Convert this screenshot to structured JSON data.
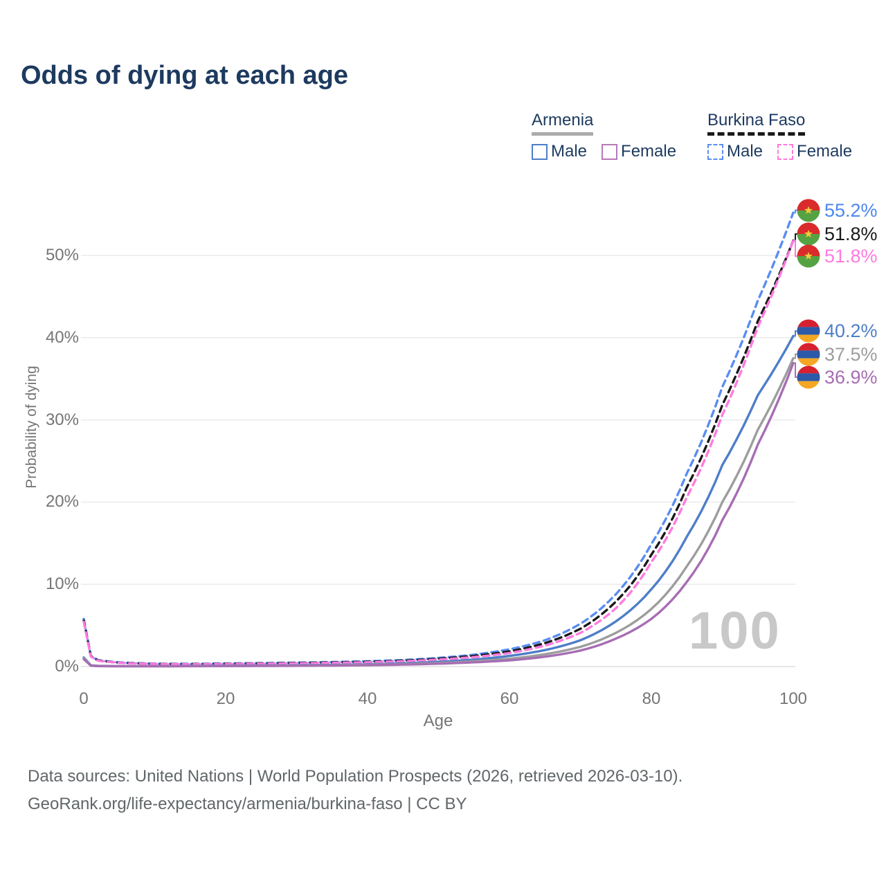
{
  "header": {
    "title": "Odds of dying at each age"
  },
  "legend": {
    "groups": [
      {
        "label": "Armenia",
        "underline_style": "solid",
        "underline_color": "#ababab",
        "items": [
          {
            "label": "Male",
            "swatch_color": "#4e7ec8",
            "swatch_style": "solid"
          },
          {
            "label": "Female",
            "swatch_color": "#b779b9",
            "swatch_style": "solid"
          }
        ]
      },
      {
        "label": "Burkina Faso",
        "underline_style": "dashed",
        "underline_color": "#1a1a1a",
        "items": [
          {
            "label": "Male",
            "swatch_color": "#5a8df0",
            "swatch_style": "dashed"
          },
          {
            "label": "Female",
            "swatch_color": "#ff7ade",
            "swatch_style": "dashed"
          }
        ]
      }
    ]
  },
  "chart_data": {
    "type": "line",
    "title": "Odds of dying at each age",
    "xlabel": "Age",
    "ylabel": "Probability of dying",
    "xlim": [
      0,
      100
    ],
    "ylim": [
      0,
      57
    ],
    "grid": "horizontal",
    "watermark": "100",
    "xticks": [
      0,
      20,
      40,
      60,
      80,
      100
    ],
    "yticks": [
      {
        "value": 0,
        "label": "0%"
      },
      {
        "value": 10,
        "label": "10%"
      },
      {
        "value": 20,
        "label": "20%"
      },
      {
        "value": 30,
        "label": "30%"
      },
      {
        "value": 40,
        "label": "40%"
      },
      {
        "value": 50,
        "label": "50%"
      }
    ],
    "x": [
      0,
      1,
      2,
      5,
      10,
      15,
      20,
      25,
      30,
      35,
      40,
      45,
      50,
      55,
      60,
      65,
      70,
      75,
      80,
      85,
      90,
      95,
      100
    ],
    "series": [
      {
        "name": "Burkina Faso Male",
        "country": "Burkina Faso",
        "sex": "Male",
        "color": "#5a8df0",
        "dash": "dashed",
        "flag": "burkina-faso",
        "end_label": "55.2%",
        "end_value": 55.2,
        "label_color": "#4c86f0",
        "label_y_pct": 55.5,
        "values": [
          5.8,
          1.3,
          0.8,
          0.5,
          0.35,
          0.33,
          0.38,
          0.42,
          0.48,
          0.55,
          0.65,
          0.8,
          1.05,
          1.45,
          2.1,
          3.2,
          5.2,
          8.8,
          14.9,
          23.5,
          34.0,
          44.5,
          55.2
        ]
      },
      {
        "name": "Burkina Faso Both sexes",
        "country": "Burkina Faso",
        "sex": "Both",
        "color": "#1a1a1a",
        "dash": "dashed",
        "flag": "burkina-faso",
        "end_label": "51.8%",
        "end_value": 51.8,
        "label_color": "#1a1a1a",
        "label_y_pct": 52.6,
        "values": [
          5.6,
          1.25,
          0.75,
          0.47,
          0.33,
          0.3,
          0.34,
          0.38,
          0.43,
          0.5,
          0.58,
          0.72,
          0.95,
          1.3,
          1.85,
          2.85,
          4.6,
          7.9,
          13.6,
          21.8,
          31.8,
          42.0,
          51.8
        ]
      },
      {
        "name": "Burkina Faso Female",
        "country": "Burkina Faso",
        "sex": "Female",
        "color": "#ff7ade",
        "dash": "dashed",
        "flag": "burkina-faso",
        "end_label": "51.8%",
        "end_value": 51.8,
        "label_color": "#ff7ade",
        "label_y_pct": 49.9,
        "values": [
          5.45,
          1.2,
          0.72,
          0.45,
          0.31,
          0.28,
          0.31,
          0.34,
          0.39,
          0.45,
          0.52,
          0.65,
          0.85,
          1.15,
          1.65,
          2.55,
          4.1,
          7.1,
          12.7,
          20.6,
          30.6,
          41.3,
          51.8
        ]
      },
      {
        "name": "Armenia Male",
        "country": "Armenia",
        "sex": "Male",
        "color": "#4e7ec8",
        "dash": "solid",
        "flag": "armenia",
        "end_label": "40.2%",
        "end_value": 40.2,
        "label_color": "#4e7ec8",
        "label_y_pct": 40.8,
        "values": [
          1.1,
          0.15,
          0.08,
          0.06,
          0.06,
          0.08,
          0.11,
          0.13,
          0.16,
          0.2,
          0.28,
          0.4,
          0.58,
          0.85,
          1.3,
          2.0,
          3.2,
          5.5,
          9.4,
          15.8,
          24.5,
          33.0,
          40.2
        ]
      },
      {
        "name": "Armenia Both sexes",
        "country": "Armenia",
        "sex": "Both",
        "color": "#9d9d9d",
        "dash": "solid",
        "flag": "armenia",
        "end_label": "37.5%",
        "end_value": 37.5,
        "label_color": "#9d9d9d",
        "label_y_pct": 38.0,
        "values": [
          1.0,
          0.13,
          0.07,
          0.05,
          0.05,
          0.06,
          0.08,
          0.1,
          0.12,
          0.16,
          0.22,
          0.3,
          0.44,
          0.65,
          0.95,
          1.5,
          2.4,
          4.1,
          7.0,
          12.2,
          20.0,
          28.8,
          37.5
        ]
      },
      {
        "name": "Armenia Female",
        "country": "Armenia",
        "sex": "Female",
        "color": "#a76db3",
        "dash": "solid",
        "flag": "armenia",
        "end_label": "36.9%",
        "end_value": 36.9,
        "label_color": "#a76db3",
        "label_y_pct": 35.2,
        "values": [
          0.9,
          0.11,
          0.06,
          0.04,
          0.04,
          0.05,
          0.06,
          0.08,
          0.1,
          0.13,
          0.17,
          0.24,
          0.35,
          0.52,
          0.75,
          1.2,
          1.95,
          3.4,
          5.8,
          10.3,
          17.8,
          27.0,
          36.9
        ]
      }
    ],
    "flag_colors": {
      "burkina-faso": {
        "red": "#d92b2b",
        "green": "#55a243",
        "star": "#f2c93b"
      },
      "armenia": {
        "red": "#d6212f",
        "blue": "#2c59a8",
        "orange": "#f5a623"
      }
    },
    "grid_color": "#ececec",
    "zero_line_color": "#dedede"
  },
  "footer": {
    "line1": "Data sources: United Nations | World Population Prospects (2026, retrieved 2026-03-10).",
    "line2": "GeoRank.org/life-expectancy/armenia/burkina-faso | CC BY"
  }
}
